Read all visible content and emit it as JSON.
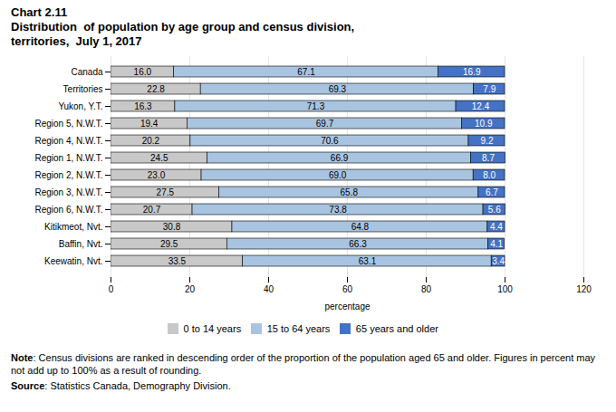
{
  "chart_data": {
    "type": "bar",
    "orientation": "horizontal",
    "stacked": true,
    "title": "Chart 2.11",
    "subtitle": [
      "Distribution  of population by age group and census division,",
      "territories,  July 1, 2017"
    ],
    "categories": [
      "Canada",
      "Territories",
      "Yukon, Y.T.",
      "Region 5, N.W.T.",
      "Region 4, N.W.T.",
      "Region 1, N.W.T.",
      "Region 2, N.W.T.",
      "Region 3, N.W.T.",
      "Region 6, N.W.T.",
      "Kitikmeot, Nvt.",
      "Baffin, Nvt.",
      "Keewatin, Nvt."
    ],
    "series": [
      {
        "name": "0 to 14 years",
        "color": "#c8c8c8",
        "values": [
          16.0,
          22.8,
          16.3,
          19.4,
          20.2,
          24.5,
          23.0,
          27.5,
          20.7,
          30.8,
          29.5,
          33.5
        ],
        "value_labels": [
          "16.0",
          "22.8",
          "16.3",
          "19.4",
          "20.2",
          "24.5",
          "23.0",
          "27.5",
          "20.7",
          "30.8",
          "29.5",
          "33.5"
        ]
      },
      {
        "name": "15 to 64 years",
        "color": "#a8c4e0",
        "values": [
          67.1,
          69.3,
          71.3,
          69.7,
          70.6,
          66.9,
          69.0,
          65.8,
          73.8,
          64.8,
          66.3,
          63.1
        ],
        "value_labels": [
          "67.1",
          "69.3",
          "71.3",
          "69.7",
          "70.6",
          "66.9",
          "69.0",
          "65.8",
          "73.8",
          "64.8",
          "66.3",
          "63.1"
        ]
      },
      {
        "name": "65 years and older",
        "color": "#4472c4",
        "values": [
          16.9,
          7.9,
          12.4,
          10.9,
          9.2,
          8.7,
          8.0,
          6.7,
          5.6,
          4.4,
          4.1,
          3.4
        ],
        "value_labels": [
          "16.9",
          "7.9",
          "12.4",
          "10.9",
          "9.2",
          "8.7",
          "8.0",
          "6.7",
          "5.6",
          "4.4",
          "4.1",
          "3.4"
        ]
      }
    ],
    "xlabel": "percentage",
    "xlim": [
      0,
      120
    ],
    "xticks": [
      0,
      20,
      40,
      60,
      80,
      100,
      120
    ],
    "grid": true,
    "legend": "bottom",
    "data_labels": true,
    "annotations": [
      "Note: Census divisions are ranked in descending order of the proportion of the population aged 65 and older. Figures in percent may not add up to 100% as a result of rounding.",
      "Source: Statistics Canada, Demography Division."
    ]
  }
}
